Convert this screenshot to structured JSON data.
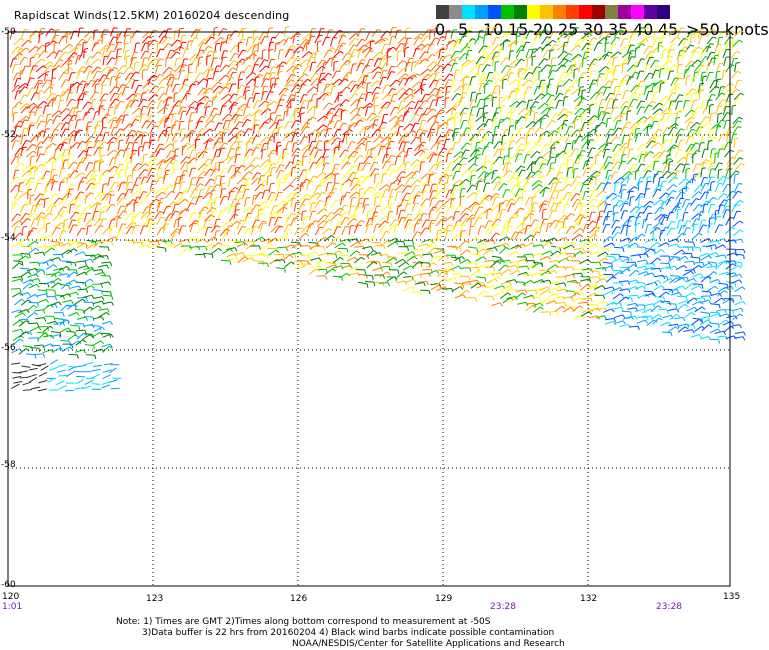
{
  "title": "Rapidscat Winds(12.5KM) 20160204 descending",
  "colorbar": {
    "colors": [
      "#404040",
      "#8c8c8c",
      "#00e0ff",
      "#00a0ff",
      "#0050ff",
      "#00c000",
      "#008000",
      "#ffff00",
      "#ffc000",
      "#ff8000",
      "#ff4000",
      "#ff0000",
      "#a00000",
      "#808040",
      "#a000a0",
      "#ff00ff",
      "#6000a0",
      "#300080"
    ],
    "labels": [
      "0",
      "5",
      "10",
      "15",
      "20",
      "25",
      "30",
      "35",
      "40",
      "45",
      ">50 knots"
    ]
  },
  "lat_labels": [
    "-50",
    "-52",
    "-54",
    "-56",
    "-58",
    "-60"
  ],
  "lon_labels": [
    "120",
    "123",
    "126",
    "129",
    "132",
    "135"
  ],
  "time_labels": [
    "1:01",
    "23:28",
    "23:28"
  ],
  "notes": {
    "line1": "Note: 1) Times are GMT 2)Times along bottom correspond to measurement at -50S",
    "line2": "3)Data buffer is 22 hrs from 20160204 4) Black wind barbs indicate possible contamination",
    "line3": "NOAA/NESDIS/Center for Satellite Applications and Research"
  }
}
